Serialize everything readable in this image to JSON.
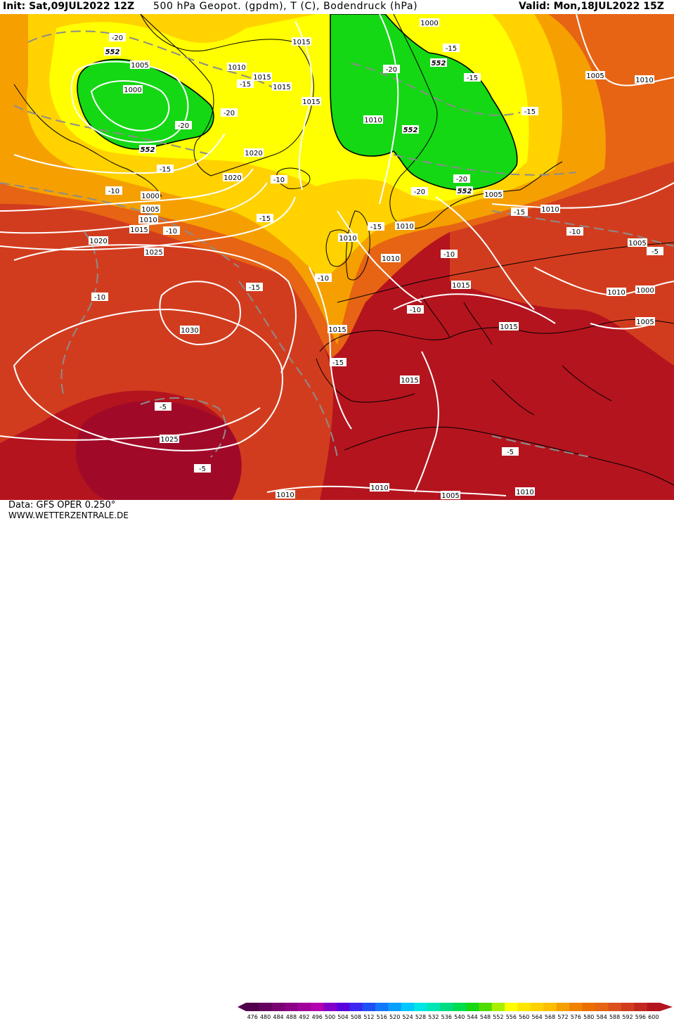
{
  "header": {
    "init": "Init: Sat,09JUL2022 12Z",
    "title": "500 hPa Geopot. (gpdm), T (C), Bodendruck (hPa)",
    "valid": "Valid: Mon,18JUL2022 15Z"
  },
  "footer": {
    "data_source": "Data: GFS OPER 0.250°",
    "website": "WWW.WETTERZENTRALE.DE"
  },
  "colors": {
    "green": "#14d814",
    "yellow": "#ffff00",
    "gold": "#ffd200",
    "orange": "#f5a000",
    "orange_red": "#e66414",
    "red": "#d23c1e",
    "dark_red": "#b4141e",
    "crimson": "#a00a28",
    "isobar": "#ffffff",
    "isotherm": "#8c8c8c",
    "coast": "#000000"
  },
  "color_scale": {
    "labels": [
      "476",
      "480",
      "484",
      "488",
      "492",
      "496",
      "500",
      "504",
      "508",
      "512",
      "516",
      "520",
      "524",
      "528",
      "532",
      "536",
      "540",
      "544",
      "548",
      "552",
      "556",
      "560",
      "564",
      "568",
      "572",
      "576",
      "580",
      "584",
      "588",
      "592",
      "596",
      "600"
    ],
    "colors": [
      "#50004b",
      "#64005f",
      "#780073",
      "#8c0087",
      "#a0009b",
      "#b400af",
      "#8200c8",
      "#5a00dc",
      "#3c28f0",
      "#1e50f5",
      "#1478fa",
      "#0aa0ff",
      "#00c8ff",
      "#00e6e6",
      "#00e6b4",
      "#00dc82",
      "#00dc50",
      "#14d814",
      "#50dc00",
      "#aaee00",
      "#ffff00",
      "#ffe600",
      "#ffd200",
      "#ffbe00",
      "#f5a000",
      "#f08200",
      "#eb6e00",
      "#e66414",
      "#dc501e",
      "#d23c1e",
      "#c3281e",
      "#b4141e"
    ]
  },
  "map_labels": {
    "pressure": [
      "1005",
      "1000",
      "1015",
      "1010",
      "1015",
      "1015",
      "1000",
      "1005",
      "1010",
      "1020",
      "1020",
      "1010",
      "1000",
      "1005",
      "1010",
      "1015",
      "1020",
      "1025",
      "1010",
      "1010",
      "1015",
      "1005",
      "1015",
      "1030",
      "1015",
      "1015",
      "1025",
      "1015",
      "1010",
      "1005",
      "1010",
      "1010",
      "1010",
      "1005",
      "1010",
      "1000",
      "1005",
      "1010"
    ],
    "temperature": [
      "-20",
      "-15",
      "-20",
      "-20",
      "-15",
      "-15",
      "-10",
      "-20",
      "-10",
      "-10",
      "-15",
      "-15",
      "-10",
      "-15",
      "-10",
      "-10",
      "-15",
      "-20",
      "-20",
      "-15",
      "-10",
      "-5",
      "-5",
      "-5",
      "-10",
      "-15",
      "-15",
      "-5"
    ],
    "geopotential": [
      "552",
      "552",
      "552",
      "552",
      "552"
    ]
  }
}
